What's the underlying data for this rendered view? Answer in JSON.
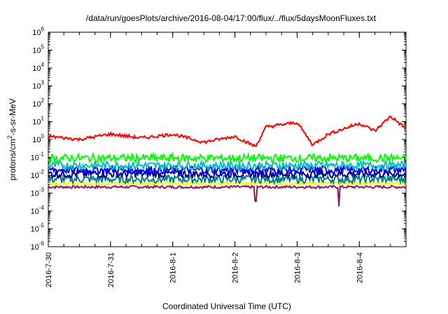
{
  "chart_data": {
    "type": "line",
    "title": "/data/run/goesPlots/archive/2016-08-04/17:00/flux/../flux/5daysMoonFluxes.txt",
    "xlabel": "Coordinated Universal Time (UTC)",
    "ylabel": "protons/cm²-s-sr-MeV",
    "ylabel_parts": {
      "pre": "protons/cm",
      "sup": "2",
      "post": "-s-sr-MeV"
    },
    "y_scale": "log",
    "ylim": [
      1e-06,
      1000000.0
    ],
    "y_ticks": [
      {
        "base": "10",
        "exp": "-6",
        "value": 1e-06
      },
      {
        "base": "10",
        "exp": "-5",
        "value": 1e-05
      },
      {
        "base": "10",
        "exp": "-4",
        "value": 0.0001
      },
      {
        "base": "10",
        "exp": "-3",
        "value": 0.001
      },
      {
        "base": "10",
        "exp": "-2",
        "value": 0.01
      },
      {
        "base": "10",
        "exp": "-1",
        "value": 0.1
      },
      {
        "base": "10",
        "exp": "0",
        "value": 1.0
      },
      {
        "base": "10",
        "exp": "1",
        "value": 10.0
      },
      {
        "base": "10",
        "exp": "2",
        "value": 100.0
      },
      {
        "base": "10",
        "exp": "3",
        "value": 1000.0
      },
      {
        "base": "10",
        "exp": "4",
        "value": 10000.0
      },
      {
        "base": "10",
        "exp": "5",
        "value": 100000.0
      },
      {
        "base": "10",
        "exp": "6",
        "value": 1000000.0
      }
    ],
    "x_range_days": [
      "2016-07-30",
      "2016-08-04T18:00"
    ],
    "x_ticks": [
      "2016-7-30",
      "2016-7-31",
      "2016-8-1",
      "2016-8-2",
      "2016-8-3",
      "2016-8-4"
    ],
    "grid": false,
    "series": [
      {
        "color": "#ff0000",
        "level": 1.2,
        "x": [
          "2016-07-30",
          "2016-07-30T12:00",
          "2016-07-31",
          "2016-07-31T12:00",
          "2016-08-01",
          "2016-08-01T12:00",
          "2016-08-02",
          "2016-08-02T08:00",
          "2016-08-02T12:00",
          "2016-08-03",
          "2016-08-03T06:00",
          "2016-08-03T12:00",
          "2016-08-04",
          "2016-08-04T06:00",
          "2016-08-04T12:00",
          "2016-08-04T18:00"
        ],
        "y": [
          1.5,
          1.0,
          2.0,
          1.2,
          2.0,
          0.7,
          1.5,
          0.4,
          5.0,
          9.0,
          0.5,
          2.0,
          8.0,
          3.0,
          20,
          4
        ]
      },
      {
        "color": "#00ff00",
        "level": 0.09
      },
      {
        "color": "#00c0c0",
        "level": 0.035
      },
      {
        "color": "#0000ff",
        "level": 0.02
      },
      {
        "color": "#00008b",
        "level": 0.012
      },
      {
        "color": "#008080",
        "level": 0.006
      },
      {
        "color": "#ffff00",
        "level": 0.0035
      },
      {
        "color": "#8b1a5b",
        "level": 0.0022,
        "dips": [
          {
            "x": "2016-08-02T08:00",
            "y": 0.00035
          },
          {
            "x": "2016-08-03T16:00",
            "y": 0.00018
          }
        ]
      }
    ]
  }
}
